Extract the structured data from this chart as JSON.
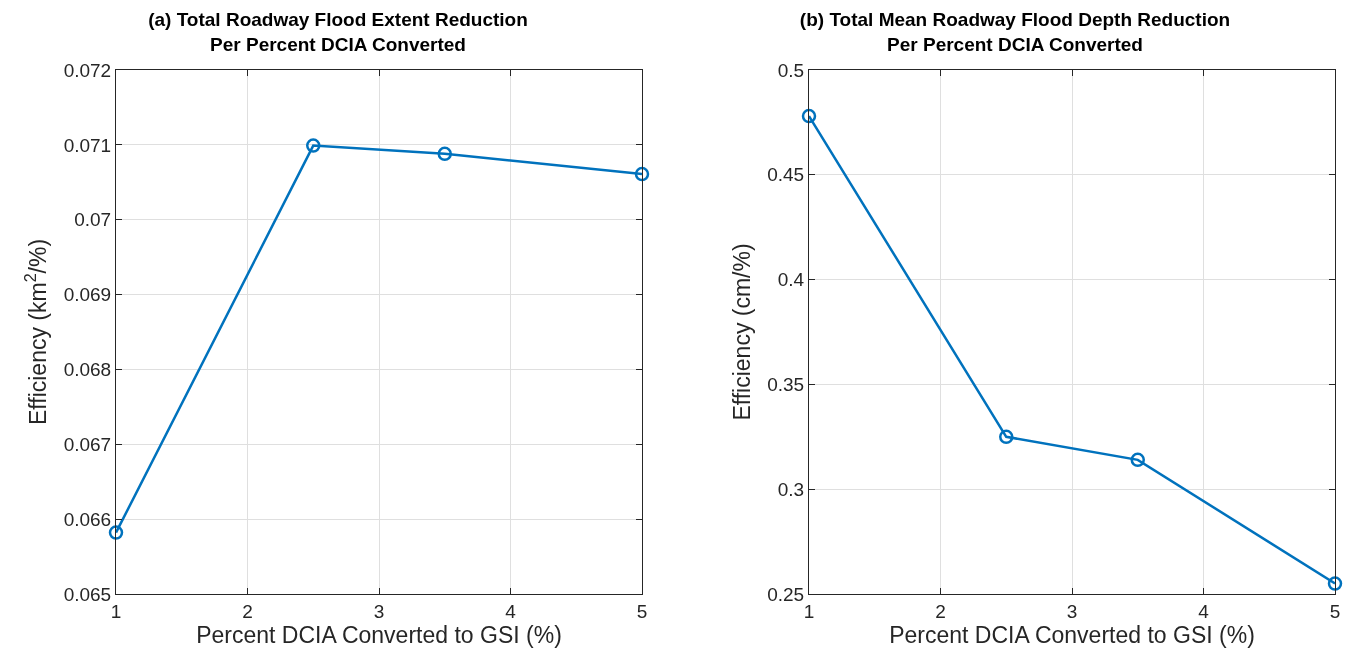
{
  "chart_data": [
    {
      "type": "line",
      "title": "(a) Total Roadway Flood Extent Reduction\nPer Percent DCIA Converted",
      "xlabel": "Percent DCIA Converted to GSI (%)",
      "ylabel": "Efficiency (km$^{2}$/%)",
      "x": [
        1,
        2.5,
        3.5,
        5
      ],
      "series": [
        {
          "color": "#0072bd",
          "values": [
            0.06582,
            0.07099,
            0.07088,
            0.07061
          ]
        }
      ],
      "xlim": [
        1,
        5
      ],
      "xticks": [
        1,
        2,
        3,
        4,
        5
      ],
      "ylim": [
        0.065,
        0.072
      ],
      "yticks": [
        0.065,
        0.066,
        0.067,
        0.068,
        0.069,
        0.07,
        0.071,
        0.072
      ],
      "grid": true,
      "marker": "circle",
      "line_style": "solid",
      "legend": false
    },
    {
      "type": "line",
      "title": "(b) Total Mean Roadway Flood Depth Reduction\nPer Percent DCIA Converted",
      "xlabel": "Percent DCIA Converted to GSI (%)",
      "ylabel": "Efficiency (cm/%)",
      "x": [
        1,
        2.5,
        3.5,
        5
      ],
      "series": [
        {
          "color": "#0072bd",
          "values": [
            0.478,
            0.325,
            0.314,
            0.255
          ]
        }
      ],
      "xlim": [
        1,
        5
      ],
      "xticks": [
        1,
        2,
        3,
        4,
        5
      ],
      "ylim": [
        0.25,
        0.5
      ],
      "yticks": [
        0.25,
        0.3,
        0.35,
        0.4,
        0.45,
        0.5
      ],
      "grid": true,
      "marker": "circle",
      "line_style": "solid",
      "legend": false
    }
  ]
}
